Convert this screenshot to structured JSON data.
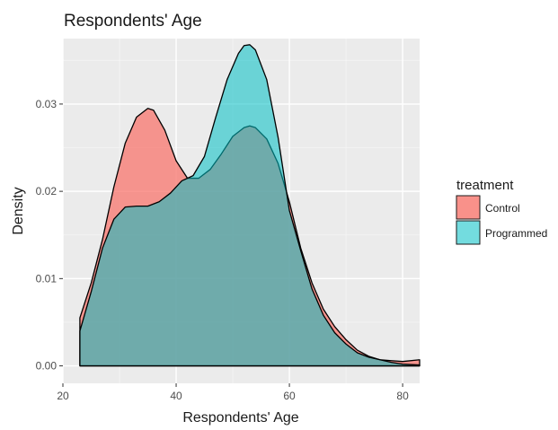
{
  "chart_data": {
    "type": "area",
    "title": "Respondents' Age",
    "xlabel": "Respondents' Age",
    "ylabel": "Density",
    "xlim": [
      20,
      83
    ],
    "ylim": [
      -0.002,
      0.0375
    ],
    "x_ticks": [
      20,
      40,
      60,
      80
    ],
    "y_ticks": [
      0.0,
      0.01,
      0.02,
      0.03
    ],
    "x_tick_labels": [
      "20",
      "40",
      "60",
      "80"
    ],
    "y_tick_labels": [
      "0.00",
      "0.01",
      "0.02",
      "0.03"
    ],
    "grid": true,
    "legend": {
      "title": "treatment",
      "position": "right"
    },
    "series": [
      {
        "name": "Control",
        "color": "#F8766D",
        "x": [
          23,
          23,
          25,
          27,
          29,
          31,
          33,
          35,
          36,
          38,
          40,
          42,
          44,
          46,
          48,
          50,
          52,
          53,
          54,
          56,
          58,
          60,
          62,
          64,
          66,
          68,
          70,
          72,
          74,
          76,
          78,
          80,
          83,
          83
        ],
        "y": [
          0.0,
          0.0055,
          0.0095,
          0.0145,
          0.0205,
          0.0255,
          0.0285,
          0.0295,
          0.0293,
          0.027,
          0.0235,
          0.0215,
          0.0215,
          0.0225,
          0.0243,
          0.0263,
          0.0273,
          0.0275,
          0.0273,
          0.026,
          0.0232,
          0.0188,
          0.0135,
          0.0095,
          0.0065,
          0.0045,
          0.003,
          0.0018,
          0.0011,
          0.0007,
          0.0006,
          0.0005,
          0.0007,
          0.0
        ]
      },
      {
        "name": "Programmed",
        "color": "#00BFC4",
        "x": [
          23,
          23,
          25,
          27,
          29,
          31,
          33,
          35,
          37,
          39,
          41,
          43,
          45,
          47,
          49,
          51,
          52,
          53,
          54,
          56,
          58,
          60,
          62,
          64,
          66,
          68,
          70,
          72,
          74,
          76,
          78,
          80,
          83,
          83
        ],
        "y": [
          0.0,
          0.004,
          0.0085,
          0.0135,
          0.0168,
          0.0182,
          0.0183,
          0.0183,
          0.0188,
          0.0198,
          0.0212,
          0.0218,
          0.024,
          0.0285,
          0.0328,
          0.0358,
          0.0367,
          0.0368,
          0.0362,
          0.0328,
          0.0262,
          0.0178,
          0.0132,
          0.0088,
          0.0058,
          0.0038,
          0.0025,
          0.0015,
          0.001,
          0.0007,
          0.0004,
          0.0002,
          0.0001,
          0.0
        ]
      }
    ]
  }
}
